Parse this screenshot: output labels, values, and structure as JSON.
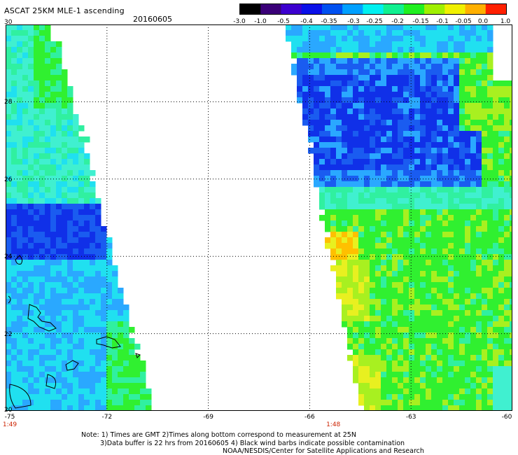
{
  "title": "ASCAT 25KM MLE-1 ascending",
  "date": "20160605",
  "colorbar": {
    "labels": [
      "-3.0",
      "-1.0",
      "-0.5",
      "-0.4",
      "-0.35",
      "-0.3",
      "-0.25",
      "-0.2",
      "-0.15",
      "-0.1",
      "-0.05",
      "0.0",
      "1.0"
    ],
    "colors": [
      "#000000",
      "#3a0078",
      "#3c00cf",
      "#0a10e8",
      "#0050f0",
      "#00a0ff",
      "#00f0f0",
      "#10f090",
      "#20f020",
      "#a0f000",
      "#f0f000",
      "#ffb000",
      "#ff2000"
    ]
  },
  "map": {
    "lon_labels": [
      "-75",
      "-72",
      "-69",
      "-66",
      "-63",
      "-60"
    ],
    "lat_labels": [
      "30",
      "28",
      "26",
      "24",
      "22",
      "20"
    ],
    "pass_times": [
      {
        "lon": -75,
        "label": "1:49"
      },
      {
        "lon": -65.3,
        "label": "1:48"
      }
    ]
  },
  "notes": {
    "line1": "Note: 1) Times are GMT 2)Times along bottom correspond to measurement at 25N",
    "line2": "3)Data buffer is 22 hrs from 20160605 4) Black wind barbs indicate possible contamination",
    "line3": "NOAA/NESDIS/Center for Satellite Applications and Research"
  }
}
